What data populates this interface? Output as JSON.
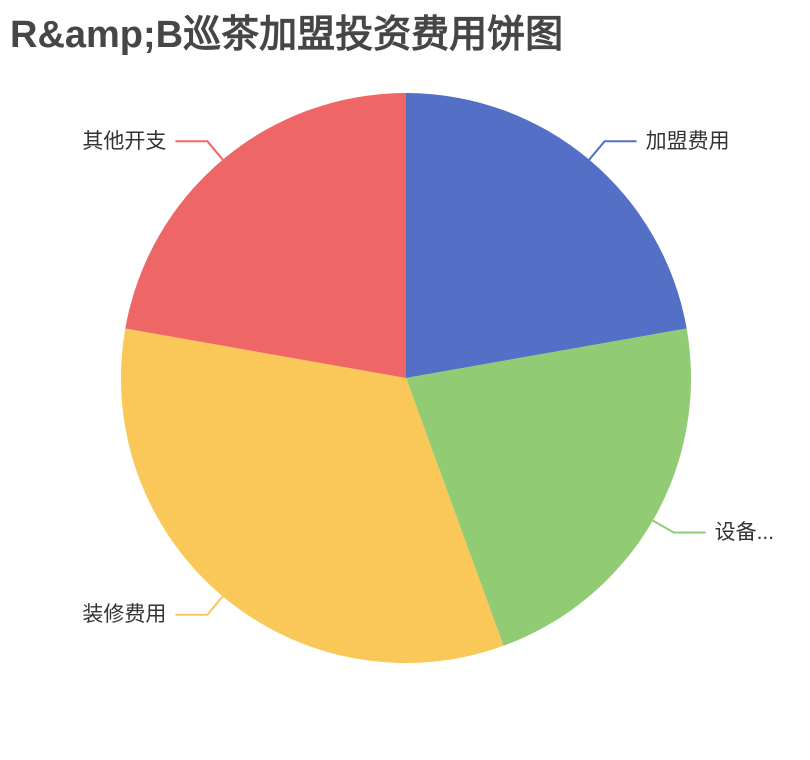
{
  "title": {
    "text": "R&amp;B巡茶加盟投资费用饼图",
    "color": "#464646"
  },
  "chart_data": {
    "type": "pie",
    "title": "R&amp;B巡茶加盟投资费用饼图",
    "legend_position": "none",
    "start_angle_deg_from_top": 0,
    "clockwise": true,
    "label_text_color": "#333333",
    "slices": [
      {
        "label": "加盟费用",
        "percent": 22.22,
        "color": "#5470c6"
      },
      {
        "label": "设备...",
        "percent": 22.22,
        "color": "#91cc75"
      },
      {
        "label": "装修费用",
        "percent": 33.33,
        "color": "#fac858"
      },
      {
        "label": "其他开支",
        "percent": 22.22,
        "color": "#ee6666"
      }
    ]
  }
}
